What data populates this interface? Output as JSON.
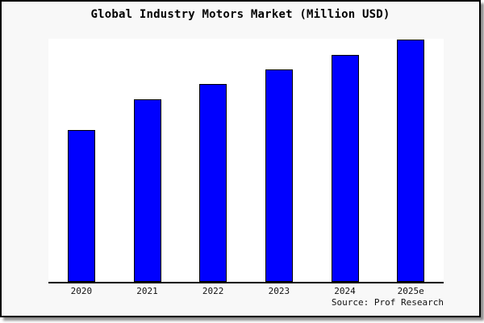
{
  "chart_data": {
    "type": "bar",
    "title": "Global Industry Motors Market (Million USD)",
    "categories": [
      "2020",
      "2021",
      "2022",
      "2023",
      "2024",
      "2025e"
    ],
    "values": [
      62.8,
      75.3,
      81.6,
      87.8,
      93.8,
      100
    ],
    "values_note": "relative bar heights, tallest bar (2025e) = 100; no numeric y-axis shown in image",
    "source": "Source: Prof Research",
    "xlabel": "",
    "ylabel": "",
    "y_axis_visible": false,
    "grid": false,
    "legend": false,
    "bar_color": "#0000ff",
    "bar_border_color": "#000000",
    "frame_background": "#f8f8f8",
    "plot_background": "#ffffff"
  }
}
